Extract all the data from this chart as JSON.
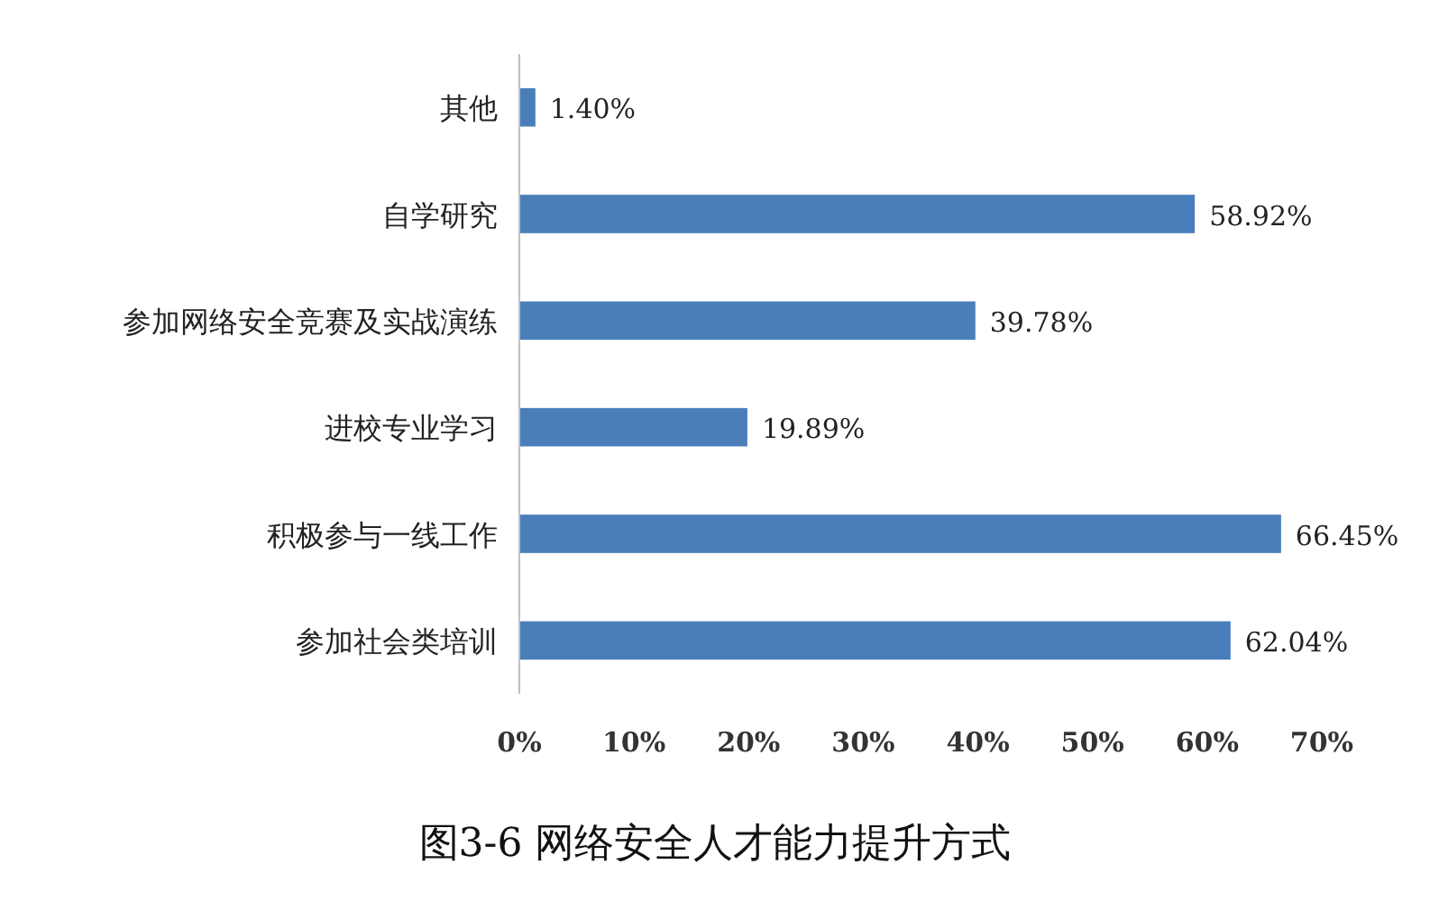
{
  "chart_data": {
    "type": "bar",
    "orientation": "horizontal",
    "title": "图3-6 网络安全人才能力提升方式",
    "categories": [
      "其他",
      "自学研究",
      "参加网络安全竞赛及实战演练",
      "进校专业学习",
      "积极参与一线工作",
      "参加社会类培训"
    ],
    "values": [
      1.4,
      58.92,
      39.78,
      19.89,
      66.45,
      62.04
    ],
    "value_labels": [
      "1.40%",
      "58.92%",
      "39.78%",
      "19.89%",
      "66.45%",
      "62.04%"
    ],
    "color": "#4a7ebb",
    "xlim": [
      0,
      70
    ],
    "xticks": [
      {
        "value": 0,
        "label": "0%"
      },
      {
        "value": 10,
        "label": "10%"
      },
      {
        "value": 20,
        "label": "20%"
      },
      {
        "value": 30,
        "label": "30%"
      },
      {
        "value": 40,
        "label": "40%"
      },
      {
        "value": 50,
        "label": "50%"
      },
      {
        "value": 60,
        "label": "60%"
      },
      {
        "value": 70,
        "label": "70%"
      }
    ],
    "grid": false
  }
}
